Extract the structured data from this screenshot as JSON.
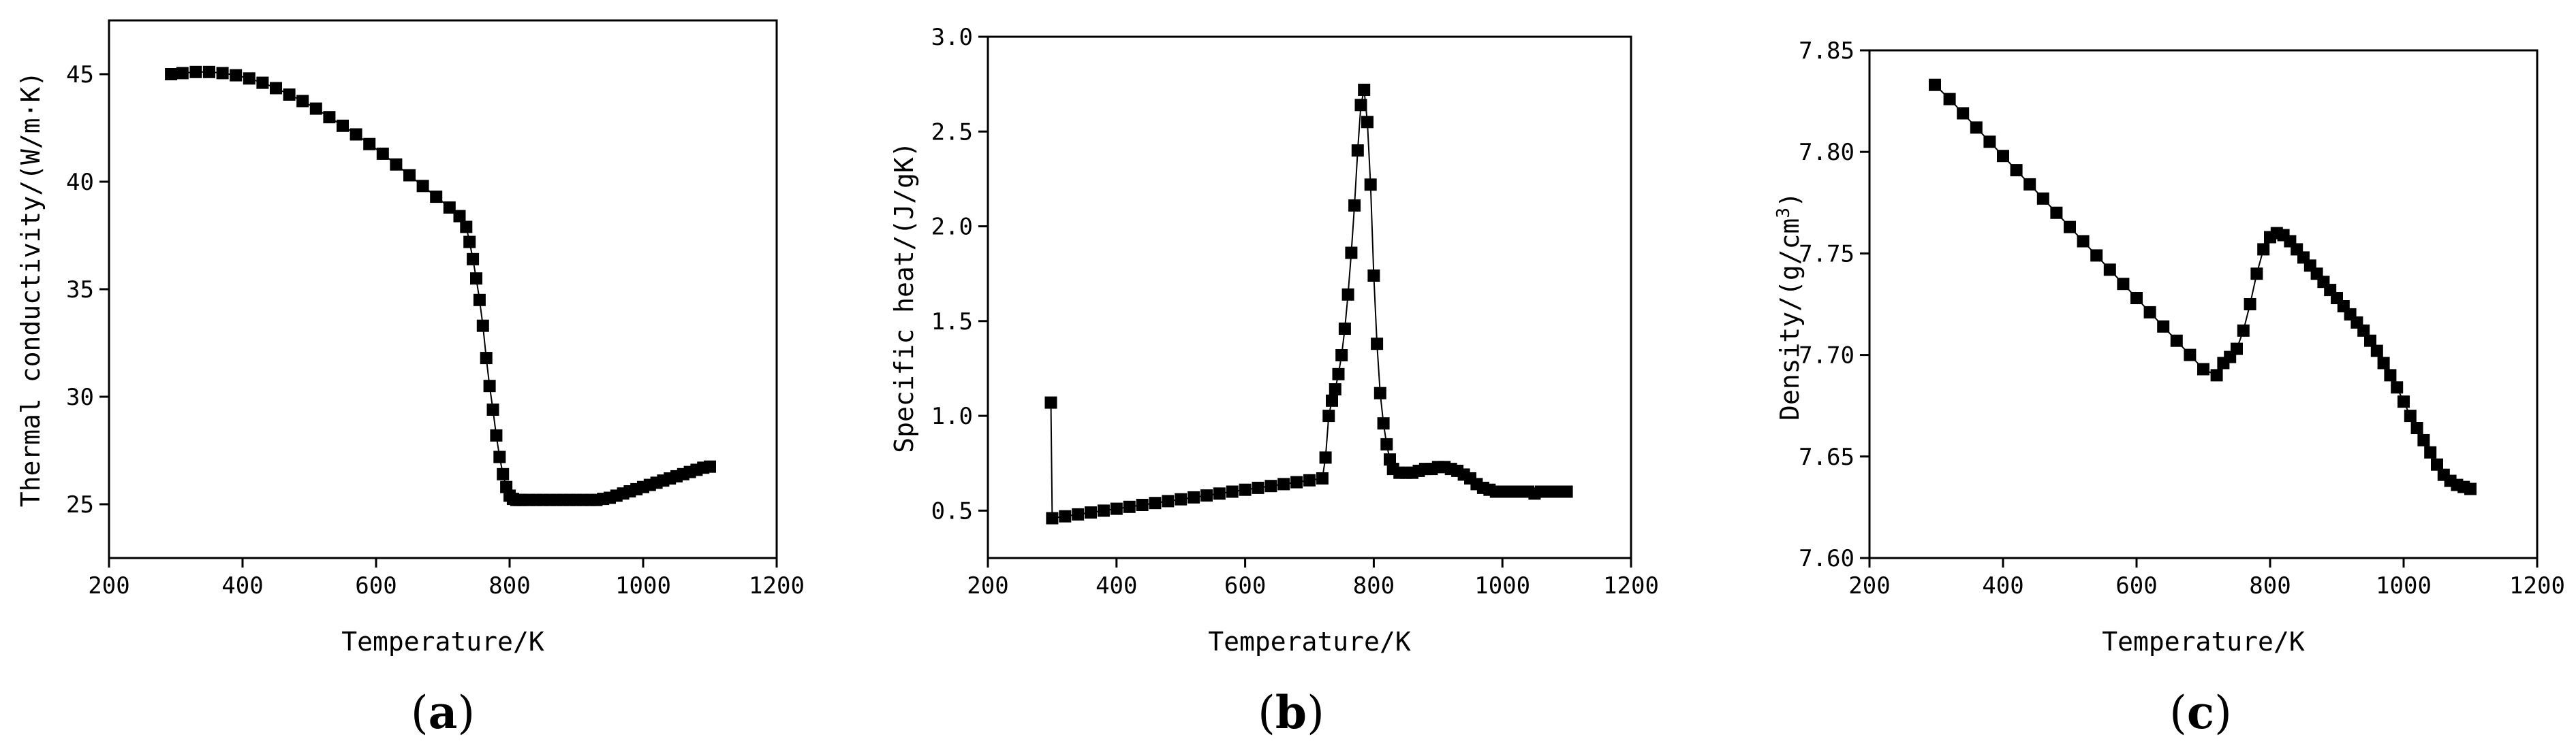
{
  "figure": {
    "background": "#ffffff",
    "ink": "#000000"
  },
  "chart_data": [
    {
      "type": "line",
      "panel_label": "(a)",
      "panel_paren_open": "(",
      "panel_letter": "a",
      "panel_paren_close": ")",
      "title": "",
      "xlabel": "Temperature/K",
      "ylabel": "Thermal conductivity/(W/m·K)",
      "xlim": [
        200,
        1200
      ],
      "ylim": [
        22.5,
        47.5
      ],
      "xticks": [
        200,
        400,
        600,
        800,
        1000,
        1200
      ],
      "yticks": [
        25,
        30,
        35,
        40,
        45
      ],
      "marker": "square",
      "series": [
        {
          "name": "Thermal conductivity",
          "x": [
            293,
            310,
            330,
            350,
            370,
            390,
            410,
            430,
            450,
            470,
            490,
            510,
            530,
            550,
            570,
            590,
            610,
            630,
            650,
            670,
            690,
            710,
            725,
            735,
            740,
            745,
            750,
            755,
            760,
            765,
            770,
            775,
            780,
            785,
            790,
            795,
            800,
            805,
            810,
            815,
            820,
            830,
            840,
            850,
            860,
            870,
            880,
            890,
            900,
            910,
            920,
            930,
            940,
            950,
            960,
            970,
            980,
            990,
            1000,
            1010,
            1020,
            1030,
            1040,
            1050,
            1060,
            1070,
            1080,
            1090,
            1100
          ],
          "y": [
            45.0,
            45.05,
            45.1,
            45.1,
            45.05,
            44.95,
            44.8,
            44.6,
            44.35,
            44.05,
            43.75,
            43.4,
            43.0,
            42.6,
            42.2,
            41.75,
            41.3,
            40.8,
            40.3,
            39.8,
            39.3,
            38.8,
            38.4,
            37.9,
            37.2,
            36.4,
            35.5,
            34.5,
            33.3,
            31.8,
            30.5,
            29.4,
            28.2,
            27.2,
            26.4,
            25.8,
            25.4,
            25.25,
            25.2,
            25.2,
            25.2,
            25.2,
            25.2,
            25.2,
            25.2,
            25.2,
            25.2,
            25.2,
            25.2,
            25.2,
            25.2,
            25.2,
            25.25,
            25.3,
            25.4,
            25.5,
            25.6,
            25.7,
            25.8,
            25.9,
            26.0,
            26.1,
            26.2,
            26.3,
            26.4,
            26.5,
            26.6,
            26.7,
            26.75
          ]
        }
      ]
    },
    {
      "type": "line",
      "panel_label": "(b)",
      "panel_paren_open": "(",
      "panel_letter": "b",
      "panel_paren_close": ")",
      "title": "",
      "xlabel": "Temperature/K",
      "ylabel": "Specific heat/(J/gK)",
      "xlim": [
        200,
        1200
      ],
      "ylim": [
        0.25,
        3.0
      ],
      "xticks": [
        200,
        400,
        600,
        800,
        1000,
        1200
      ],
      "yticks": [
        0.5,
        1.0,
        1.5,
        2.0,
        2.5,
        3.0
      ],
      "ytick_labels": [
        "0.5",
        "1.0",
        "1.5",
        "2.0",
        "2.5",
        "3.0"
      ],
      "marker": "square",
      "series": [
        {
          "name": "Specific heat",
          "x": [
            298,
            300,
            320,
            340,
            360,
            380,
            400,
            420,
            440,
            460,
            480,
            500,
            520,
            540,
            560,
            580,
            600,
            620,
            640,
            660,
            680,
            700,
            720,
            725,
            730,
            735,
            740,
            745,
            750,
            755,
            760,
            765,
            770,
            775,
            780,
            785,
            790,
            795,
            800,
            805,
            810,
            815,
            820,
            825,
            830,
            840,
            850,
            860,
            870,
            880,
            890,
            900,
            910,
            920,
            930,
            940,
            950,
            960,
            970,
            980,
            990,
            1000,
            1010,
            1020,
            1030,
            1040,
            1050,
            1060,
            1070,
            1080,
            1090,
            1100
          ],
          "y": [
            1.07,
            0.46,
            0.47,
            0.48,
            0.49,
            0.5,
            0.51,
            0.52,
            0.53,
            0.54,
            0.55,
            0.56,
            0.57,
            0.58,
            0.59,
            0.6,
            0.61,
            0.62,
            0.63,
            0.64,
            0.65,
            0.66,
            0.67,
            0.78,
            1.0,
            1.08,
            1.14,
            1.22,
            1.32,
            1.46,
            1.64,
            1.86,
            2.11,
            2.4,
            2.64,
            2.72,
            2.55,
            2.22,
            1.74,
            1.38,
            1.12,
            0.96,
            0.85,
            0.77,
            0.72,
            0.7,
            0.7,
            0.7,
            0.71,
            0.72,
            0.72,
            0.73,
            0.73,
            0.72,
            0.71,
            0.69,
            0.67,
            0.64,
            0.62,
            0.61,
            0.6,
            0.6,
            0.6,
            0.6,
            0.6,
            0.6,
            0.59,
            0.6,
            0.6,
            0.6,
            0.6,
            0.6
          ]
        }
      ]
    },
    {
      "type": "line",
      "panel_label": "(c)",
      "panel_paren_open": "(",
      "panel_letter": "c",
      "panel_paren_close": ")",
      "title": "",
      "xlabel": "Temperature/K",
      "ylabel": "Density/(g/cm",
      "ylabel_superscript": "3",
      "ylabel_close": ")",
      "xlim": [
        200,
        1200
      ],
      "ylim": [
        7.6,
        7.85
      ],
      "xticks": [
        200,
        400,
        600,
        800,
        1000,
        1200
      ],
      "yticks": [
        7.6,
        7.65,
        7.7,
        7.75,
        7.8,
        7.85
      ],
      "ytick_labels": [
        "7.60",
        "7.65",
        "7.70",
        "7.75",
        "7.80",
        "7.85"
      ],
      "marker": "square",
      "series": [
        {
          "name": "Density",
          "x": [
            298,
            320,
            340,
            360,
            380,
            400,
            420,
            440,
            460,
            480,
            500,
            520,
            540,
            560,
            580,
            600,
            620,
            640,
            660,
            680,
            700,
            720,
            730,
            740,
            750,
            760,
            770,
            780,
            790,
            800,
            810,
            820,
            830,
            840,
            850,
            860,
            870,
            880,
            890,
            900,
            910,
            920,
            930,
            940,
            950,
            960,
            970,
            980,
            990,
            1000,
            1010,
            1020,
            1030,
            1040,
            1050,
            1060,
            1070,
            1080,
            1090,
            1100
          ],
          "y": [
            7.833,
            7.826,
            7.819,
            7.812,
            7.805,
            7.798,
            7.791,
            7.784,
            7.777,
            7.77,
            7.763,
            7.756,
            7.749,
            7.742,
            7.735,
            7.728,
            7.721,
            7.714,
            7.707,
            7.7,
            7.693,
            7.69,
            7.696,
            7.699,
            7.703,
            7.712,
            7.725,
            7.74,
            7.752,
            7.758,
            7.76,
            7.759,
            7.756,
            7.752,
            7.748,
            7.744,
            7.74,
            7.736,
            7.732,
            7.728,
            7.724,
            7.72,
            7.716,
            7.712,
            7.707,
            7.702,
            7.696,
            7.69,
            7.684,
            7.677,
            7.67,
            7.664,
            7.658,
            7.652,
            7.646,
            7.641,
            7.638,
            7.636,
            7.635,
            7.634
          ]
        }
      ]
    }
  ]
}
